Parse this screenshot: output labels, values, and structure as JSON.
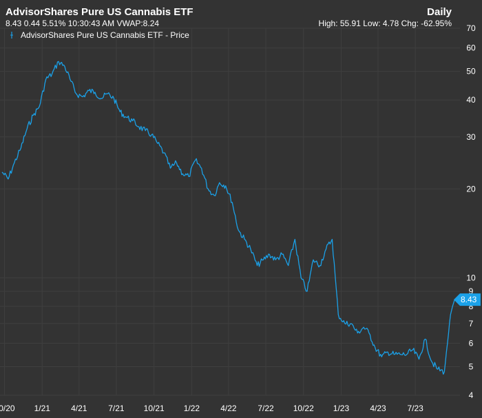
{
  "header": {
    "title": "AdvisorShares Pure US Cannabis ETF",
    "frequency": "Daily",
    "quote_line": "8.43 0.44 5.51% 10:30:43 AM VWAP:8.24",
    "stats_line": "High: 55.91 Low: 4.78 Chg: -62.95%"
  },
  "legend": {
    "label": "AdvisorShares Pure US Cannabis ETF - Price"
  },
  "last_price_label": "8.43",
  "colors": {
    "background": "#333333",
    "grid": "#3f3f3f",
    "line": "#1ba1e8",
    "text": "#ffffff"
  },
  "chart_data": {
    "type": "line",
    "title": "AdvisorShares Pure US Cannabis ETF",
    "yscale": "log",
    "ylim": [
      4,
      70
    ],
    "y_ticks": [
      4,
      5,
      6,
      7,
      8,
      9,
      10,
      20,
      30,
      40,
      50,
      60,
      70
    ],
    "x_ticks": [
      "10/20",
      "1/21",
      "4/21",
      "7/21",
      "10/21",
      "1/22",
      "4/22",
      "7/22",
      "10/22",
      "1/23",
      "4/23",
      "7/23"
    ],
    "legend_position": "top-left",
    "series": [
      {
        "name": "AdvisorShares Pure US Cannabis ETF - Price",
        "x": [
          "2020-09-25",
          "2020-10-10",
          "2020-10-25",
          "2020-11-10",
          "2020-11-25",
          "2020-12-10",
          "2020-12-25",
          "2021-01-10",
          "2021-01-25",
          "2021-02-10",
          "2021-02-25",
          "2021-03-10",
          "2021-03-25",
          "2021-04-10",
          "2021-04-25",
          "2021-05-10",
          "2021-05-25",
          "2021-06-10",
          "2021-06-25",
          "2021-07-10",
          "2021-07-25",
          "2021-08-10",
          "2021-08-25",
          "2021-09-10",
          "2021-09-25",
          "2021-10-10",
          "2021-10-25",
          "2021-11-10",
          "2021-11-25",
          "2021-12-10",
          "2021-12-25",
          "2022-01-10",
          "2022-01-25",
          "2022-02-10",
          "2022-02-25",
          "2022-03-10",
          "2022-03-25",
          "2022-04-10",
          "2022-04-25",
          "2022-05-10",
          "2022-05-25",
          "2022-06-10",
          "2022-06-25",
          "2022-07-10",
          "2022-07-25",
          "2022-08-10",
          "2022-08-25",
          "2022-09-10",
          "2022-09-25",
          "2022-10-10",
          "2022-10-25",
          "2022-11-10",
          "2022-11-25",
          "2022-12-10",
          "2022-12-25",
          "2023-01-10",
          "2023-01-25",
          "2023-02-10",
          "2023-02-25",
          "2023-03-10",
          "2023-03-25",
          "2023-04-10",
          "2023-04-25",
          "2023-05-10",
          "2023-05-25",
          "2023-06-10",
          "2023-06-25",
          "2023-07-10",
          "2023-07-25",
          "2023-08-10",
          "2023-08-25",
          "2023-09-10",
          "2023-09-25",
          "2023-10-05"
        ],
        "y": [
          22.8,
          21.6,
          24.5,
          27.5,
          32,
          35.5,
          38,
          47,
          49,
          54,
          52,
          47,
          42,
          41,
          43,
          42.5,
          40.5,
          42,
          40.5,
          36.5,
          35,
          34,
          32.5,
          31.5,
          30.5,
          28.5,
          26.5,
          23.5,
          24.5,
          22.5,
          22,
          25,
          23.5,
          20,
          19,
          21,
          20.5,
          18,
          14.5,
          13.5,
          12.5,
          11,
          11.5,
          12,
          11.5,
          12,
          11,
          13.5,
          10,
          9,
          11.5,
          11,
          12.5,
          13.5,
          7.5,
          7,
          7,
          6.5,
          6.8,
          6.5,
          5.8,
          5.4,
          5.6,
          5.5,
          5.5,
          5.5,
          5.7,
          5.3,
          6.2,
          5.2,
          4.9,
          4.8,
          7.5,
          8.43
        ]
      }
    ]
  }
}
